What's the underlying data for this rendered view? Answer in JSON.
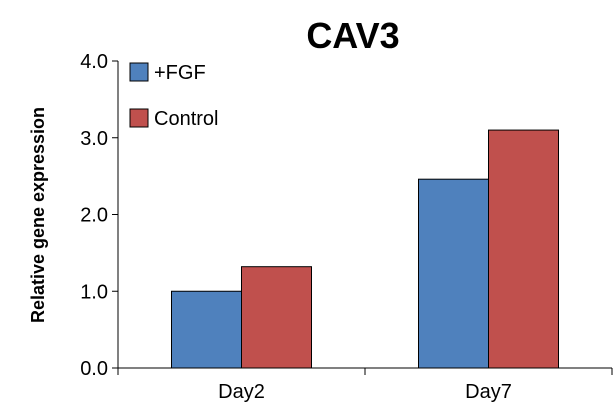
{
  "chart_data": {
    "type": "bar",
    "title": "CAV3",
    "ylabel": "Relative gene expression",
    "xlabel": "",
    "categories": [
      "Day2",
      "Day7"
    ],
    "ylim": [
      0,
      4
    ],
    "yticks": [
      0,
      1,
      2,
      3,
      4
    ],
    "ytick_labels": [
      "0.0",
      "1.0",
      "2.0",
      "3.0",
      "4.0"
    ],
    "series": [
      {
        "name": "+FGF",
        "values": [
          1.0,
          2.46
        ],
        "color": "#4f81bd"
      },
      {
        "name": "Control",
        "values": [
          1.32,
          3.1
        ],
        "color": "#c0504d"
      }
    ],
    "legend_position": "top-left",
    "grid": false
  }
}
